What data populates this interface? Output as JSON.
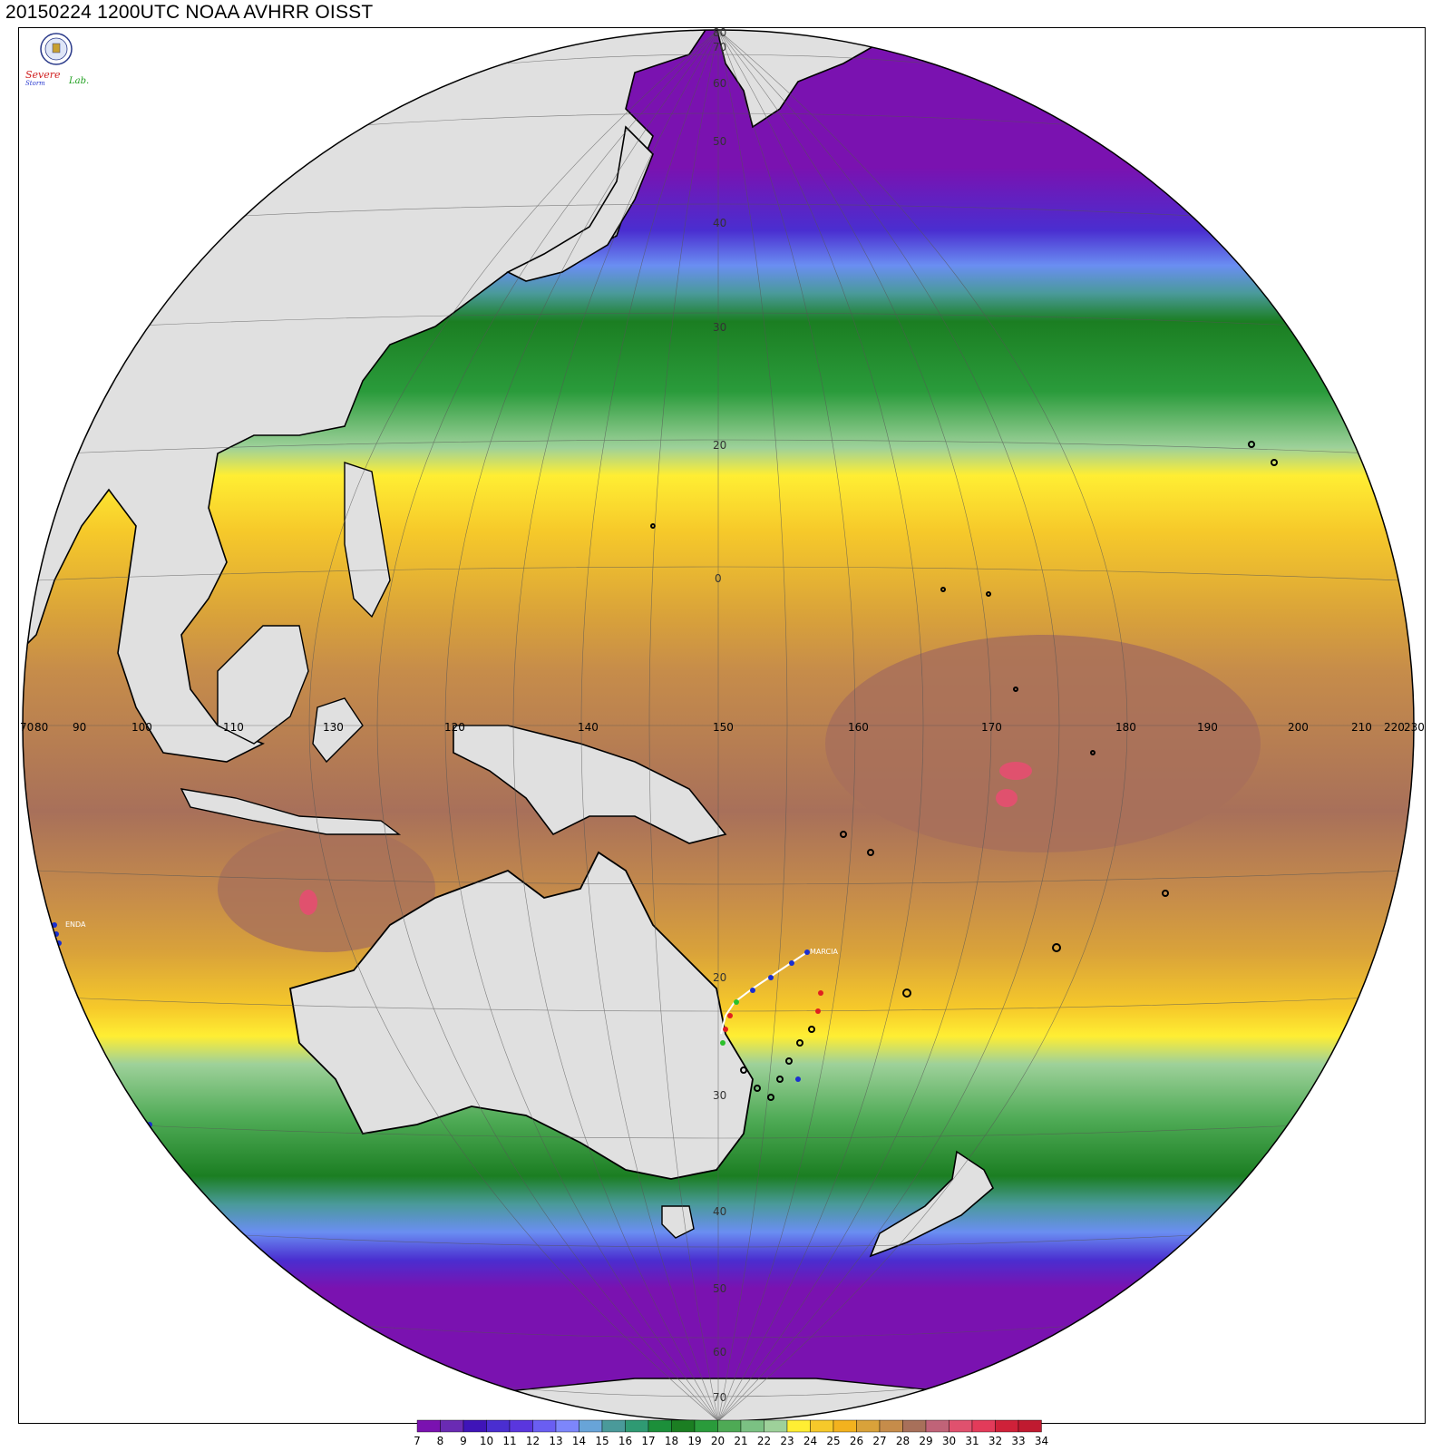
{
  "title": "20150224 1200UTC NOAA AVHRR OISST",
  "logo": {
    "text_top": "Severe",
    "text_bottom": "Storm",
    "text_lab": "Lab."
  },
  "longitude_labels": [
    "70",
    "80",
    "90",
    "100",
    "110",
    "120",
    "130",
    "140",
    "150",
    "160",
    "170",
    "180",
    "190",
    "200",
    "210",
    "220",
    "230"
  ],
  "latitude_labels": [
    "80",
    "70",
    "60",
    "50",
    "40",
    "30",
    "20",
    "0",
    "20",
    "30",
    "40",
    "50",
    "60",
    "70"
  ],
  "storms": [
    {
      "name": "MARCIA"
    },
    {
      "name": "ENDA"
    }
  ],
  "colorbar": {
    "unit_hint": "",
    "ticks": [
      "7",
      "8",
      "9",
      "10",
      "11",
      "12",
      "13",
      "14",
      "15",
      "16",
      "17",
      "18",
      "19",
      "20",
      "21",
      "22",
      "23",
      "24",
      "25",
      "26",
      "27",
      "28",
      "29",
      "30",
      "31",
      "32",
      "33",
      "34"
    ],
    "colors": [
      "#7a12b0",
      "#6a2bb3",
      "#3f14b8",
      "#4a2ed0",
      "#5a36de",
      "#6a5ef2",
      "#7d86fb",
      "#68a4d8",
      "#4a9a9a",
      "#2f9a73",
      "#1c8f3a",
      "#1b7e22",
      "#2a9b3b",
      "#4eaa55",
      "#7bc183",
      "#9ed19a",
      "#ffee33",
      "#f6c92a",
      "#f3b21e",
      "#d9a23a",
      "#c68c4a",
      "#a8705a",
      "#c06378",
      "#e0516e",
      "#e33b5a",
      "#cf2139",
      "#c01a30"
    ]
  }
}
